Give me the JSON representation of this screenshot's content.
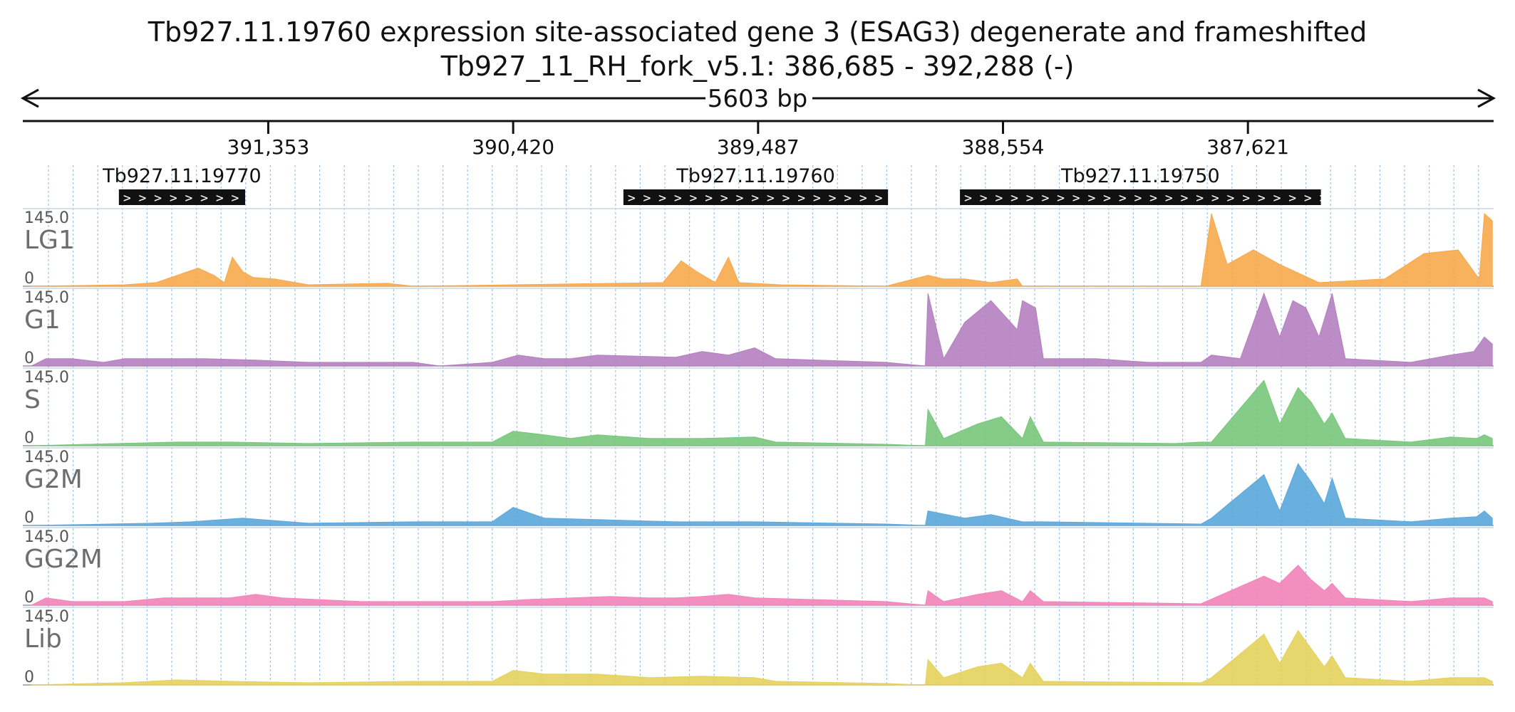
{
  "title_line1": "Tb927.11.19760  expression site-associated gene 3 (ESAG3)  degenerate and frameshifted",
  "title_line2": "Tb927_11_RH_fork_v5.1: 386,685 - 392,288 (-)",
  "span_label": "5603 bp",
  "chart_data": {
    "type": "area",
    "region": {
      "start": 386685,
      "end": 392288,
      "strand": "-"
    },
    "x_ticks": [
      391353,
      390420,
      389487,
      388554,
      387621
    ],
    "x_tick_labels": [
      "391,353",
      "390,420",
      "389,487",
      "388,554",
      "387,621"
    ],
    "genes": [
      {
        "id": "Tb927.11.19770",
        "start": 391441,
        "end": 391922,
        "chevrons": "> > > > > > > > > >"
      },
      {
        "id": "Tb927.11.19760",
        "start": 388992,
        "end": 390000,
        "chevrons": "> > > > > > > > > > > > > > > > > > > > > > > >"
      },
      {
        "id": "Tb927.11.19750",
        "start": 387343,
        "end": 388718,
        "chevrons": "> > > > > > > > > > > > > > > > > > > > > > > > > > > > > > > > >"
      }
    ],
    "y_range": [
      0,
      145
    ],
    "y_max_label": "145.0",
    "y_min_label": "0",
    "series_hint": "Coverage values per track given as [position, height fraction of 145] profile points.",
    "tracks": [
      {
        "name": "LG1",
        "color": "#f7a84a",
        "profile": [
          [
            392255,
            0
          ],
          [
            391900,
            0.02
          ],
          [
            391780,
            0.05
          ],
          [
            391700,
            0.15
          ],
          [
            391620,
            0.25
          ],
          [
            391560,
            0.15
          ],
          [
            391520,
            0.05
          ],
          [
            391490,
            0.4
          ],
          [
            391450,
            0.2
          ],
          [
            391410,
            0.12
          ],
          [
            391330,
            0.1
          ],
          [
            391200,
            0.02
          ],
          [
            390900,
            0.04
          ],
          [
            390800,
            0
          ],
          [
            389850,
            0.05
          ],
          [
            389780,
            0.35
          ],
          [
            389720,
            0.2
          ],
          [
            389650,
            0.05
          ],
          [
            389600,
            0.4
          ],
          [
            389560,
            0.05
          ],
          [
            389400,
            0.02
          ],
          [
            389000,
            0
          ],
          [
            388840,
            0.15
          ],
          [
            388780,
            0.1
          ],
          [
            388700,
            0.1
          ],
          [
            388600,
            0.05
          ],
          [
            388500,
            0.1
          ],
          [
            388480,
            0
          ],
          [
            387800,
            0
          ],
          [
            387760,
            1
          ],
          [
            387700,
            0.3
          ],
          [
            387600,
            0.5
          ],
          [
            387500,
            0.3
          ],
          [
            387350,
            0.05
          ],
          [
            387100,
            0.1
          ],
          [
            386950,
            0.45
          ],
          [
            386820,
            0.5
          ],
          [
            386740,
            0.1
          ],
          [
            386720,
            1
          ],
          [
            386690,
            0.9
          ]
        ]
      },
      {
        "name": "G1",
        "color": "#b57fc0",
        "profile": [
          [
            392255,
            0
          ],
          [
            392200,
            0.1
          ],
          [
            392100,
            0.1
          ],
          [
            391980,
            0.05
          ],
          [
            391900,
            0.1
          ],
          [
            391750,
            0.1
          ],
          [
            391600,
            0.1
          ],
          [
            391400,
            0.08
          ],
          [
            391200,
            0.05
          ],
          [
            390800,
            0.05
          ],
          [
            390700,
            0
          ],
          [
            390500,
            0.05
          ],
          [
            390400,
            0.15
          ],
          [
            390300,
            0.1
          ],
          [
            390200,
            0.1
          ],
          [
            390100,
            0.15
          ],
          [
            389800,
            0.12
          ],
          [
            389700,
            0.2
          ],
          [
            389600,
            0.15
          ],
          [
            389500,
            0.25
          ],
          [
            389420,
            0.1
          ],
          [
            389000,
            0.05
          ],
          [
            388850,
            0
          ],
          [
            388840,
            1
          ],
          [
            388780,
            0.1
          ],
          [
            388700,
            0.6
          ],
          [
            388600,
            0.9
          ],
          [
            388500,
            0.5
          ],
          [
            388480,
            0.9
          ],
          [
            388430,
            0.8
          ],
          [
            388400,
            0.1
          ],
          [
            388200,
            0.1
          ],
          [
            388000,
            0.05
          ],
          [
            387800,
            0.05
          ],
          [
            387760,
            0.15
          ],
          [
            387650,
            0.1
          ],
          [
            387560,
            1
          ],
          [
            387500,
            0.4
          ],
          [
            387450,
            0.9
          ],
          [
            387400,
            0.8
          ],
          [
            387350,
            0.4
          ],
          [
            387300,
            1
          ],
          [
            387250,
            0.1
          ],
          [
            387000,
            0.05
          ],
          [
            386850,
            0.15
          ],
          [
            386760,
            0.2
          ],
          [
            386720,
            0.4
          ],
          [
            386690,
            0.3
          ]
        ]
      },
      {
        "name": "S",
        "color": "#77c77a",
        "profile": [
          [
            392255,
            0
          ],
          [
            391700,
            0.05
          ],
          [
            391500,
            0.05
          ],
          [
            391200,
            0.03
          ],
          [
            390800,
            0.05
          ],
          [
            390500,
            0.05
          ],
          [
            390420,
            0.2
          ],
          [
            390300,
            0.15
          ],
          [
            390200,
            0.1
          ],
          [
            390100,
            0.15
          ],
          [
            389900,
            0.1
          ],
          [
            389700,
            0.1
          ],
          [
            389500,
            0.12
          ],
          [
            389420,
            0.05
          ],
          [
            389000,
            0.02
          ],
          [
            388850,
            0
          ],
          [
            388840,
            0.5
          ],
          [
            388780,
            0.1
          ],
          [
            388650,
            0.3
          ],
          [
            388560,
            0.4
          ],
          [
            388480,
            0.1
          ],
          [
            388450,
            0.4
          ],
          [
            388400,
            0.05
          ],
          [
            387900,
            0.03
          ],
          [
            387800,
            0.05
          ],
          [
            387760,
            0.05
          ],
          [
            387560,
            0.9
          ],
          [
            387500,
            0.3
          ],
          [
            387430,
            0.8
          ],
          [
            387380,
            0.6
          ],
          [
            387330,
            0.3
          ],
          [
            387300,
            0.45
          ],
          [
            387250,
            0.1
          ],
          [
            387000,
            0.05
          ],
          [
            386850,
            0.12
          ],
          [
            386750,
            0.1
          ],
          [
            386720,
            0.15
          ],
          [
            386690,
            0.1
          ]
        ]
      },
      {
        "name": "G2M",
        "color": "#5aa7dc",
        "profile": [
          [
            392255,
            0
          ],
          [
            391800,
            0.03
          ],
          [
            391650,
            0.05
          ],
          [
            391450,
            0.1
          ],
          [
            391200,
            0.03
          ],
          [
            390800,
            0.05
          ],
          [
            390500,
            0.05
          ],
          [
            390420,
            0.25
          ],
          [
            390300,
            0.1
          ],
          [
            390100,
            0.08
          ],
          [
            389800,
            0.05
          ],
          [
            389500,
            0.05
          ],
          [
            389000,
            0.02
          ],
          [
            388850,
            0
          ],
          [
            388840,
            0.2
          ],
          [
            388700,
            0.1
          ],
          [
            388600,
            0.15
          ],
          [
            388480,
            0.05
          ],
          [
            388400,
            0.05
          ],
          [
            387800,
            0.02
          ],
          [
            387760,
            0.1
          ],
          [
            387560,
            0.7
          ],
          [
            387500,
            0.2
          ],
          [
            387430,
            0.85
          ],
          [
            387380,
            0.6
          ],
          [
            387330,
            0.3
          ],
          [
            387300,
            0.65
          ],
          [
            387250,
            0.1
          ],
          [
            387000,
            0.05
          ],
          [
            386850,
            0.1
          ],
          [
            386750,
            0.12
          ],
          [
            386720,
            0.2
          ],
          [
            386690,
            0.1
          ]
        ]
      },
      {
        "name": "GG2M",
        "color": "#f283b8",
        "profile": [
          [
            392255,
            0
          ],
          [
            392200,
            0.1
          ],
          [
            392100,
            0.05
          ],
          [
            391900,
            0.05
          ],
          [
            391750,
            0.1
          ],
          [
            391500,
            0.1
          ],
          [
            391400,
            0.15
          ],
          [
            391300,
            0.1
          ],
          [
            391000,
            0.05
          ],
          [
            390800,
            0.05
          ],
          [
            390500,
            0.05
          ],
          [
            390350,
            0.08
          ],
          [
            390200,
            0.1
          ],
          [
            390050,
            0.12
          ],
          [
            389900,
            0.1
          ],
          [
            389800,
            0.1
          ],
          [
            389700,
            0.12
          ],
          [
            389600,
            0.15
          ],
          [
            389500,
            0.1
          ],
          [
            389000,
            0.05
          ],
          [
            388850,
            0
          ],
          [
            388840,
            0.2
          ],
          [
            388780,
            0.05
          ],
          [
            388650,
            0.15
          ],
          [
            388560,
            0.2
          ],
          [
            388480,
            0.05
          ],
          [
            388450,
            0.2
          ],
          [
            388400,
            0.05
          ],
          [
            388000,
            0.03
          ],
          [
            387800,
            0.02
          ],
          [
            387560,
            0.4
          ],
          [
            387500,
            0.3
          ],
          [
            387430,
            0.55
          ],
          [
            387380,
            0.35
          ],
          [
            387330,
            0.2
          ],
          [
            387300,
            0.3
          ],
          [
            387250,
            0.1
          ],
          [
            387000,
            0.05
          ],
          [
            386850,
            0.1
          ],
          [
            386720,
            0.1
          ],
          [
            386690,
            0.05
          ]
        ]
      },
      {
        "name": "Lib",
        "color": "#e3d25c",
        "profile": [
          [
            392255,
            0
          ],
          [
            391900,
            0.03
          ],
          [
            391700,
            0.07
          ],
          [
            391500,
            0.05
          ],
          [
            391200,
            0.03
          ],
          [
            390800,
            0.05
          ],
          [
            390500,
            0.05
          ],
          [
            390420,
            0.2
          ],
          [
            390300,
            0.15
          ],
          [
            390100,
            0.15
          ],
          [
            389900,
            0.1
          ],
          [
            389700,
            0.12
          ],
          [
            389500,
            0.1
          ],
          [
            389420,
            0.05
          ],
          [
            389000,
            0.02
          ],
          [
            388850,
            0
          ],
          [
            388840,
            0.35
          ],
          [
            388780,
            0.1
          ],
          [
            388650,
            0.25
          ],
          [
            388560,
            0.3
          ],
          [
            388480,
            0.1
          ],
          [
            388450,
            0.3
          ],
          [
            388400,
            0.05
          ],
          [
            387800,
            0.03
          ],
          [
            387760,
            0.1
          ],
          [
            387560,
            0.7
          ],
          [
            387500,
            0.3
          ],
          [
            387430,
            0.75
          ],
          [
            387380,
            0.5
          ],
          [
            387330,
            0.25
          ],
          [
            387300,
            0.4
          ],
          [
            387250,
            0.1
          ],
          [
            387000,
            0.05
          ],
          [
            386850,
            0.1
          ],
          [
            386720,
            0.1
          ],
          [
            386690,
            0.05
          ]
        ]
      }
    ]
  }
}
